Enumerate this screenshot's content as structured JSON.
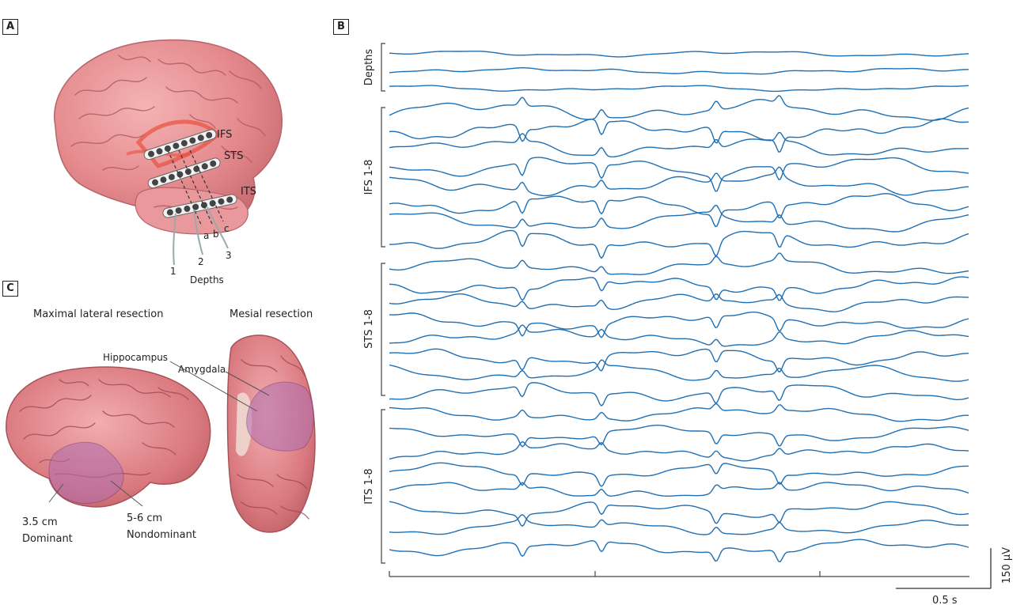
{
  "panels": {
    "a": {
      "tag": "A"
    },
    "b": {
      "tag": "B"
    },
    "c": {
      "tag": "C"
    }
  },
  "panel_a": {
    "strips": [
      "IFS",
      "STS",
      "ITS"
    ],
    "depth_letters": [
      "a",
      "b",
      "c"
    ],
    "depth_numbers": [
      "1",
      "2",
      "3"
    ],
    "depths_label": "Depths"
  },
  "panel_c": {
    "left_title": "Maximal lateral resection",
    "right_title": "Mesial resection",
    "hippocampus": "Hippocampus",
    "amygdala": "Amygdala",
    "dominant_size": "3.5 cm",
    "dominant_label": "Dominant",
    "nondominant_size": "5-6 cm",
    "nondominant_label": "Nondominant"
  },
  "panel_b": {
    "groups": [
      "Depths",
      "IFS 1-8",
      "STS 1-8",
      "ITS 1-8"
    ],
    "time_scale": "0.5 s",
    "voltage_scale": "150 µV",
    "trace_color": "#1f6fb3"
  }
}
